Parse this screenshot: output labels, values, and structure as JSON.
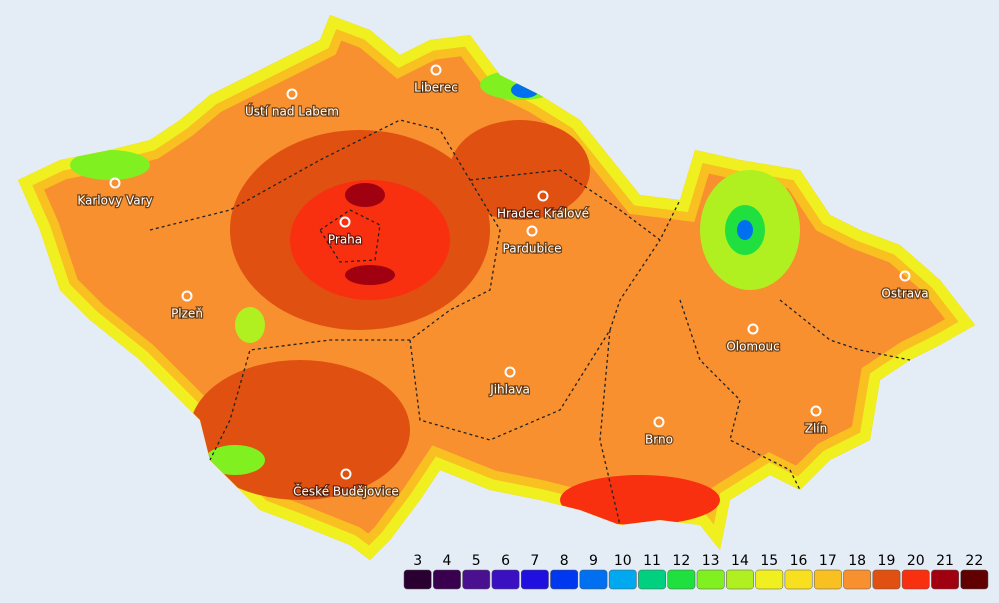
{
  "cities": [
    "Ústí nad Labem",
    "Liberec",
    "Karlovy Vary",
    "Hradec Králové",
    "Pardubice",
    "Praha",
    "Plzeň",
    "Ostrava",
    "Olomouc",
    "Jihlava",
    "Zlín",
    "Brno",
    "České Budějovice"
  ],
  "legend": {
    "values": [
      3,
      4,
      5,
      6,
      7,
      8,
      9,
      10,
      11,
      12,
      13,
      14,
      15,
      16,
      17,
      18,
      19,
      20,
      21,
      22
    ],
    "colors": [
      "#2a0030",
      "#3a0050",
      "#4a1090",
      "#3a10c0",
      "#2010e0",
      "#0038f0",
      "#0070f0",
      "#00a8f0",
      "#00d080",
      "#20e040",
      "#80f020",
      "#b0f020",
      "#f0f020",
      "#f8e020",
      "#f8c020",
      "#f89030",
      "#e05010",
      "#f83010",
      "#a00010",
      "#600000"
    ]
  }
}
